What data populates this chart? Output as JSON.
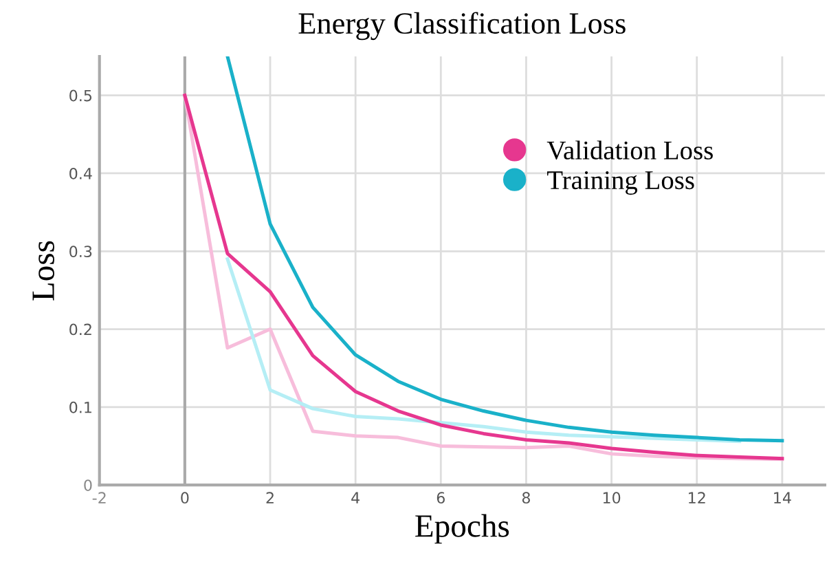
{
  "chart_data": {
    "type": "line",
    "title": "Energy Classification Loss",
    "xlabel": "Epochs",
    "ylabel": "Loss",
    "x": [
      0,
      1,
      2,
      3,
      4,
      5,
      6,
      7,
      8,
      9,
      10,
      11,
      12,
      13,
      14
    ],
    "series": [
      {
        "color": "#f7bddb",
        "values": [
          0.5,
          0.176,
          0.2,
          0.069,
          0.063,
          0.061,
          0.05,
          0.049,
          0.048,
          0.05,
          0.04,
          0.037,
          0.035,
          0.034,
          0.033
        ]
      },
      {
        "color": "#b5eef5",
        "values": [
          null,
          0.29,
          0.122,
          0.098,
          0.088,
          0.085,
          0.08,
          0.075,
          0.068,
          0.064,
          0.062,
          0.06,
          0.058,
          0.056,
          null
        ]
      },
      {
        "name": "Validation Loss",
        "color": "#e6378f",
        "values": [
          0.5,
          0.297,
          0.248,
          0.166,
          0.12,
          0.095,
          0.077,
          0.066,
          0.058,
          0.054,
          0.047,
          0.042,
          0.038,
          0.036,
          0.034
        ]
      },
      {
        "name": "Training Loss",
        "color": "#1ab1c9",
        "values": [
          null,
          0.55,
          0.335,
          0.228,
          0.167,
          0.133,
          0.11,
          0.095,
          0.083,
          0.074,
          0.068,
          0.064,
          0.061,
          0.058,
          0.057
        ]
      }
    ],
    "xlim": [
      -2,
      15
    ],
    "ylim": [
      0,
      0.55
    ],
    "xticks": [
      {
        "value": -2,
        "label": "-2"
      },
      0,
      2,
      4,
      6,
      8,
      10,
      12,
      14
    ],
    "yticks": [
      0,
      0.1,
      0.2,
      0.3,
      0.4,
      0.5
    ],
    "ref_lines": [
      {
        "axis": "x",
        "value": 0,
        "color": "#aaaaaa"
      }
    ],
    "grid": true,
    "legend": "top right",
    "marker": "none",
    "line_style": "solid"
  }
}
